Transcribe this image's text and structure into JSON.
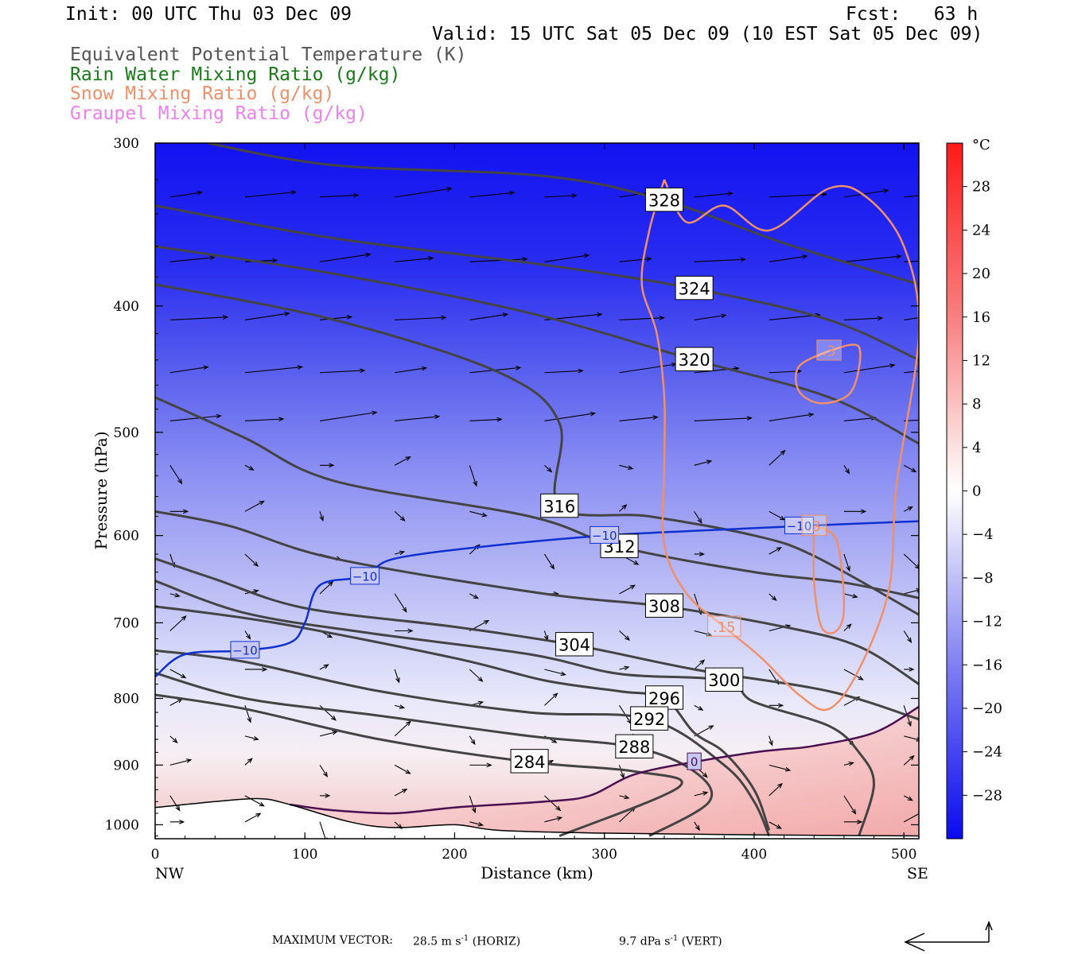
{
  "header": {
    "init": "Init: 00 UTC Thu 03 Dec 09",
    "fcst": "Fcst:   63 h",
    "valid": "Valid: 15 UTC Sat 05 Dec 09 (10 EST Sat 05 Dec 09)"
  },
  "legend": [
    {
      "text": "Equivalent Potential Temperature (K)",
      "color": "#555555"
    },
    {
      "text": "Rain Water Mixing Ratio (g/kg)",
      "color": "#1a7a1a"
    },
    {
      "text": "Snow Mixing Ratio (g/kg)",
      "color": "#f0906a"
    },
    {
      "text": "Graupel Mixing Ratio (g/kg)",
      "color": "#ee80ee"
    }
  ],
  "footer": {
    "label": "MAXIMUM VECTOR:",
    "horiz": "28.5 m s",
    "horiz_unit": "(HORIZ)",
    "vert": "9.7 dPa s",
    "vert_unit": "(VERT)",
    "exponent": "-1"
  },
  "colors": {
    "theta_e": "#444444",
    "temp_contour": "#1030d0",
    "zero_isotherm": "#4a1050",
    "snow": "#f0906a"
  },
  "chart_data": {
    "type": "cross-section",
    "xlabel": "Distance (km)",
    "ylabel": "Pressure (hPa)",
    "xlim": [
      0,
      510
    ],
    "ylim": [
      1025,
      300
    ],
    "y_scale": "log",
    "x_ticks": [
      "0",
      "100",
      "200",
      "300",
      "400",
      "500"
    ],
    "y_ticks": [
      "300",
      "400",
      "500",
      "600",
      "700",
      "800",
      "900",
      "1000"
    ],
    "x_end_labels": {
      "left": "NW",
      "right": "SE"
    },
    "colorbar": {
      "unit": "°C",
      "labels": [
        "28",
        "24",
        "20",
        "16",
        "12",
        "8",
        "4",
        "0",
        "-4",
        "-8",
        "-12",
        "-16",
        "-20",
        "-24",
        "-28"
      ],
      "range": [
        -32,
        32
      ]
    },
    "temperature_fill_approx": [
      {
        "pressure": 300,
        "temp_C": -30
      },
      {
        "pressure": 500,
        "temp_C": -20
      },
      {
        "pressure": 700,
        "temp_C": -8
      },
      {
        "pressure": 850,
        "temp_C": -4
      },
      {
        "pressure": 950,
        "temp_C": 2
      },
      {
        "pressure": 1020,
        "temp_C": 6
      }
    ],
    "theta_e_contours": [
      {
        "label": "328",
        "points": [
          [
            35,
            300
          ],
          [
            120,
            312
          ],
          [
            260,
            318
          ],
          [
            340,
            332
          ],
          [
            420,
            358
          ],
          [
            510,
            385
          ]
        ]
      },
      {
        "label": "324",
        "points": [
          [
            0,
            335
          ],
          [
            120,
            355
          ],
          [
            260,
            372
          ],
          [
            360,
            388
          ],
          [
            450,
            410
          ],
          [
            510,
            440
          ]
        ]
      },
      {
        "label": "320",
        "points": [
          [
            0,
            360
          ],
          [
            120,
            378
          ],
          [
            250,
            405
          ],
          [
            360,
            440
          ],
          [
            450,
            470
          ],
          [
            510,
            510
          ]
        ]
      },
      {
        "label": "316",
        "points": [
          [
            0,
            385
          ],
          [
            120,
            410
          ],
          [
            230,
            450
          ],
          [
            270,
            492
          ],
          [
            270,
            570
          ],
          [
            330,
            580
          ],
          [
            400,
            600
          ],
          [
            440,
            622
          ],
          [
            510,
            690
          ]
        ]
      },
      {
        "label": "312",
        "points": [
          [
            0,
            470
          ],
          [
            60,
            505
          ],
          [
            120,
            545
          ],
          [
            250,
            580
          ],
          [
            310,
            612
          ],
          [
            400,
            640
          ],
          [
            460,
            652
          ],
          [
            510,
            670
          ]
        ]
      },
      {
        "label": "308",
        "points": [
          [
            0,
            575
          ],
          [
            50,
            590
          ],
          [
            120,
            625
          ],
          [
            260,
            665
          ],
          [
            340,
            680
          ],
          [
            420,
            705
          ],
          [
            470,
            730
          ],
          [
            510,
            780
          ]
        ]
      },
      {
        "label": "304",
        "points": [
          [
            0,
            625
          ],
          [
            40,
            648
          ],
          [
            100,
            682
          ],
          [
            200,
            705
          ],
          [
            280,
            728
          ],
          [
            360,
            760
          ],
          [
            450,
            790
          ],
          [
            510,
            830
          ]
        ]
      },
      {
        "label": "300",
        "points": [
          [
            0,
            650
          ],
          [
            60,
            688
          ],
          [
            140,
            712
          ],
          [
            250,
            740
          ],
          [
            310,
            766
          ],
          [
            380,
            775
          ],
          [
            400,
            805
          ],
          [
            450,
            840
          ],
          [
            470,
            880
          ],
          [
            480,
            930
          ],
          [
            470,
            1020
          ]
        ]
      },
      {
        "label": "296",
        "points": [
          [
            0,
            680
          ],
          [
            80,
            700
          ],
          [
            200,
            745
          ],
          [
            260,
            775
          ],
          [
            310,
            790
          ],
          [
            340,
            800
          ],
          [
            360,
            850
          ],
          [
            380,
            880
          ],
          [
            400,
            940
          ],
          [
            410,
            1010
          ]
        ]
      },
      {
        "label": "292",
        "points": [
          [
            0,
            735
          ],
          [
            60,
            750
          ],
          [
            150,
            790
          ],
          [
            250,
            820
          ],
          [
            330,
            830
          ],
          [
            380,
            900
          ],
          [
            400,
            960
          ],
          [
            410,
            1020
          ]
        ]
      },
      {
        "label": "288",
        "points": [
          [
            0,
            765
          ],
          [
            60,
            800
          ],
          [
            150,
            825
          ],
          [
            250,
            855
          ],
          [
            320,
            872
          ],
          [
            360,
            910
          ],
          [
            370,
            960
          ],
          [
            330,
            1020
          ]
        ]
      },
      {
        "label": "284",
        "points": [
          [
            0,
            795
          ],
          [
            60,
            815
          ],
          [
            150,
            860
          ],
          [
            250,
            895
          ],
          [
            320,
            910
          ],
          [
            350,
            935
          ],
          [
            270,
            1020
          ]
        ]
      }
    ],
    "temperature_contours": [
      {
        "label": "-10",
        "points": [
          [
            0,
            770
          ],
          [
            20,
            740
          ],
          [
            60,
            735
          ],
          [
            90,
            725
          ],
          [
            100,
            700
          ],
          [
            110,
            655
          ],
          [
            140,
            645
          ],
          [
            160,
            625
          ],
          [
            230,
            610
          ],
          [
            300,
            600
          ],
          [
            360,
            595
          ],
          [
            430,
            590
          ],
          [
            510,
            585
          ]
        ]
      },
      {
        "label": "0",
        "points": [
          [
            90,
            965
          ],
          [
            120,
            975
          ],
          [
            160,
            980
          ],
          [
            200,
            970
          ],
          [
            260,
            960
          ],
          [
            290,
            950
          ],
          [
            320,
            915
          ],
          [
            360,
            895
          ],
          [
            400,
            880
          ],
          [
            420,
            875
          ],
          [
            440,
            870
          ],
          [
            480,
            850
          ],
          [
            510,
            812
          ]
        ]
      }
    ],
    "snow_contours": [
      {
        "label": ".15",
        "points": [
          [
            340,
            320
          ],
          [
            355,
            345
          ],
          [
            380,
            335
          ],
          [
            410,
            350
          ],
          [
            450,
            325
          ],
          [
            475,
            330
          ],
          [
            500,
            360
          ],
          [
            510,
            420
          ],
          [
            495,
            550
          ],
          [
            490,
            660
          ],
          [
            470,
            760
          ],
          [
            450,
            815
          ],
          [
            430,
            795
          ],
          [
            405,
            745
          ],
          [
            380,
            705
          ],
          [
            355,
            665
          ],
          [
            340,
            610
          ],
          [
            340,
            530
          ],
          [
            340,
            470
          ],
          [
            335,
            420
          ],
          [
            325,
            385
          ],
          [
            330,
            350
          ],
          [
            340,
            320
          ]
        ]
      },
      {
        "label": ".3",
        "points": [
          [
            450,
            433
          ],
          [
            470,
            430
          ],
          [
            465,
            465
          ],
          [
            445,
            475
          ],
          [
            430,
            465
          ],
          [
            430,
            445
          ],
          [
            450,
            433
          ]
        ]
      },
      {
        "label": ".3",
        "points": [
          [
            440,
            590
          ],
          [
            455,
            605
          ],
          [
            460,
            680
          ],
          [
            455,
            710
          ],
          [
            445,
            705
          ],
          [
            440,
            650
          ],
          [
            440,
            590
          ]
        ]
      }
    ],
    "terrain_pressure": [
      [
        0,
        970
      ],
      [
        40,
        960
      ],
      [
        70,
        955
      ],
      [
        90,
        965
      ],
      [
        130,
        995
      ],
      [
        160,
        1005
      ],
      [
        200,
        1000
      ],
      [
        230,
        1010
      ],
      [
        300,
        1015
      ],
      [
        400,
        1018
      ],
      [
        510,
        1020
      ]
    ]
  }
}
